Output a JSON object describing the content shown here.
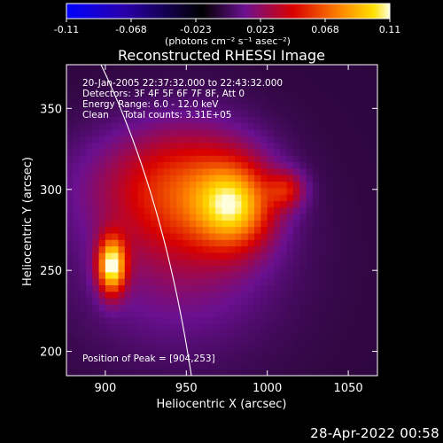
{
  "chart_data": {
    "type": "heatmap",
    "title": "Reconstructed RHESSI Image",
    "xlabel": "Heliocentric X (arcsec)",
    "ylabel": "Heliocentric Y (arcsec)",
    "xlim": [
      876,
      1068
    ],
    "ylim": [
      185,
      377
    ],
    "x_ticks": [
      900,
      950,
      1000,
      1050
    ],
    "y_ticks": [
      200,
      250,
      300,
      350
    ],
    "colorbar": {
      "min": -0.11,
      "max": 0.11,
      "ticks": [
        "-0.11",
        "-0.068",
        "-0.023",
        "0.023",
        "0.068",
        "0.11"
      ],
      "label": "(photons cm⁻² s⁻¹ asec⁻²)",
      "colormap": [
        "#0000ff",
        "#2a00aa",
        "#000000",
        "#6a1090",
        "#d80000",
        "#ff8800",
        "#ffe000",
        "#ffffe0"
      ]
    },
    "annotations": [
      "20-Jan-2005 22:37:32.000 to 22:43:32.000",
      "Detectors: 3F 4F 5F 6F 7F 8F, Att 0",
      "Energy Range: 6.0 - 12.0 keV",
      "Clean     Total counts: 3.31E+05",
      "Position of Peak = [904,253]"
    ],
    "peak_position": [
      904,
      253
    ],
    "sources": [
      {
        "x": 904,
        "y": 253,
        "sx": 6,
        "sy": 12,
        "amp": 0.105
      },
      {
        "x": 980,
        "y": 290,
        "sx": 16,
        "sy": 18,
        "amp": 0.07
      },
      {
        "x": 1012,
        "y": 300,
        "sx": 8,
        "sy": 8,
        "amp": 0.038
      },
      {
        "x": 955,
        "y": 300,
        "sx": 30,
        "sy": 28,
        "amp": 0.045
      },
      {
        "x": 945,
        "y": 255,
        "sx": 45,
        "sy": 40,
        "amp": 0.022
      },
      {
        "x": 920,
        "y": 305,
        "sx": 35,
        "sy": 25,
        "amp": 0.018
      }
    ],
    "background_level": -0.005
  },
  "footer": {
    "date": "28-Apr-2022 00:58"
  }
}
